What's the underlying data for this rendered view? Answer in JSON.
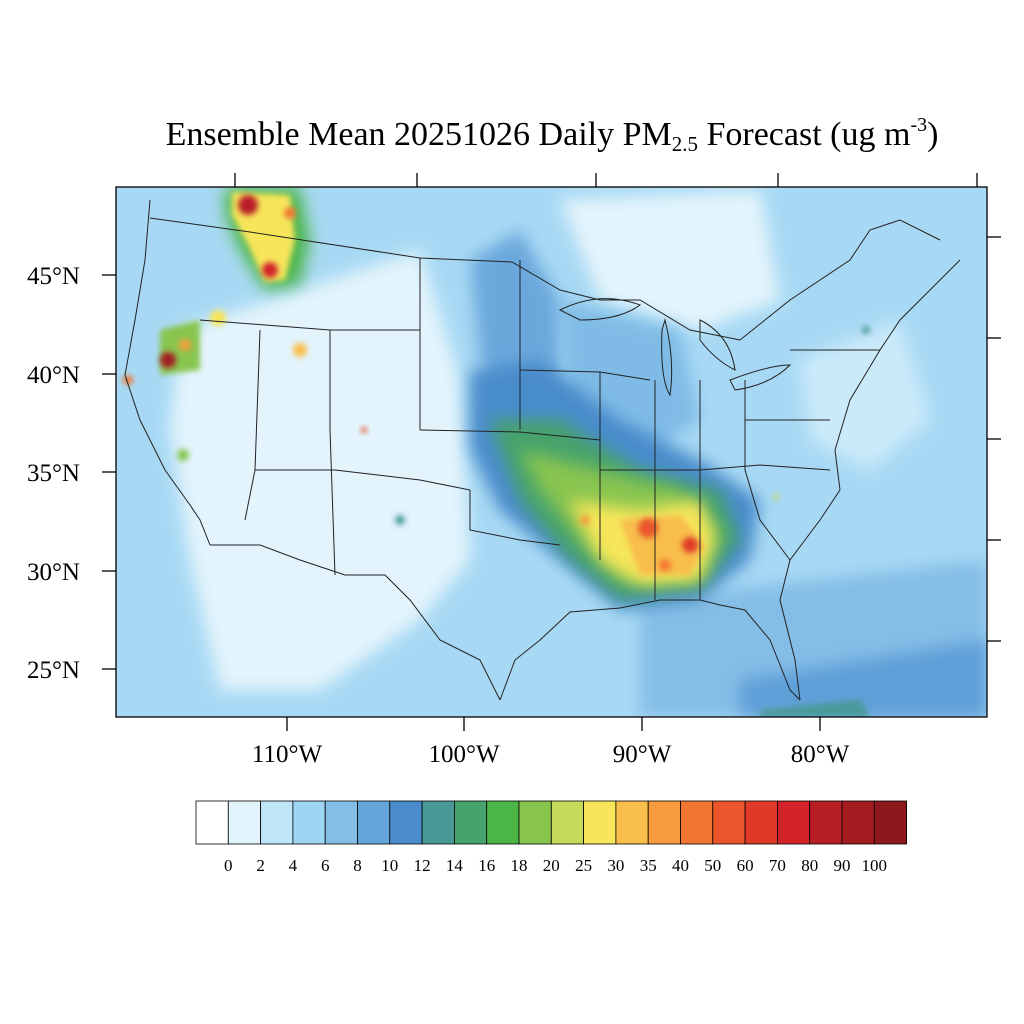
{
  "title": {
    "prefix": "Ensemble Mean 20251026 Daily PM",
    "subscript": "2.5",
    "middle": " Forecast (ug m",
    "superscript": "-3",
    "suffix": ")"
  },
  "axes": {
    "lat_labels": [
      "45°N",
      "40°N",
      "35°N",
      "30°N",
      "25°N"
    ],
    "lon_labels": [
      "110°W",
      "100°W",
      "90°W",
      "80°W"
    ]
  },
  "colorbar": {
    "labels": [
      "0",
      "2",
      "4",
      "6",
      "8",
      "10",
      "12",
      "14",
      "16",
      "18",
      "20",
      "25",
      "30",
      "35",
      "40",
      "50",
      "60",
      "70",
      "80",
      "90",
      "100"
    ],
    "colors": [
      "#ffffff",
      "#e1f3fb",
      "#bfe6f8",
      "#9dd5f3",
      "#84bde6",
      "#65a6da",
      "#4a8ccb",
      "#4a9999",
      "#47a36c",
      "#4bb548",
      "#88c54f",
      "#c6d95a",
      "#f7e65a",
      "#f8be4c",
      "#f69c3e",
      "#f27631",
      "#ea552b",
      "#df3a27",
      "#d22329",
      "#b81f25",
      "#a41b20",
      "#8c181b"
    ]
  },
  "map": {
    "features": [
      "state-borders",
      "coastlines",
      "great-lakes"
    ],
    "hotspot_levels": [
      {
        "name": "northern-rockies-smoke",
        "level": "90"
      },
      {
        "name": "northern-california-fire",
        "level": "80"
      },
      {
        "name": "lower-mississippi-valley",
        "level": "40"
      },
      {
        "name": "alabama-georgia",
        "level": "50"
      }
    ]
  }
}
